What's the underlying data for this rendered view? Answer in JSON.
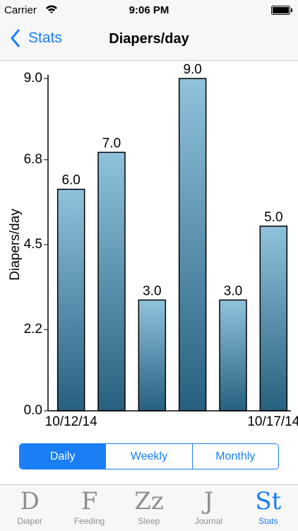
{
  "status_bar": {
    "carrier": "Carrier",
    "time": "9:06 PM"
  },
  "nav": {
    "back": "Stats",
    "title": "Diapers/day"
  },
  "chart_data": {
    "type": "bar",
    "ylabel": "Diapers/day",
    "categories": [
      "10/12/14",
      null,
      null,
      null,
      null,
      "10/17/14"
    ],
    "values": [
      6,
      7,
      3,
      9,
      3,
      5
    ],
    "value_labels": [
      "6.0",
      "7.0",
      "3.0",
      "9.0",
      "3.0",
      "5.0"
    ],
    "color": "#4f8fb2",
    "ylim": [
      0,
      9
    ],
    "yticks": [
      {
        "value": 0,
        "label": "0.0"
      },
      {
        "value": 2.2,
        "label": "2.2"
      },
      {
        "value": 4.5,
        "label": "4.5"
      },
      {
        "value": 6.8,
        "label": "6.8"
      },
      {
        "value": 9,
        "label": "9.0"
      }
    ]
  },
  "segments": [
    "Daily",
    "Weekly",
    "Monthly"
  ],
  "tabs": [
    {
      "icon": "D",
      "label": "Diaper"
    },
    {
      "icon": "F",
      "label": "Feeding"
    },
    {
      "icon": "Zz",
      "label": "Sleep"
    },
    {
      "icon": "J",
      "label": "Journal"
    },
    {
      "icon": "St",
      "label": "Stats"
    }
  ]
}
